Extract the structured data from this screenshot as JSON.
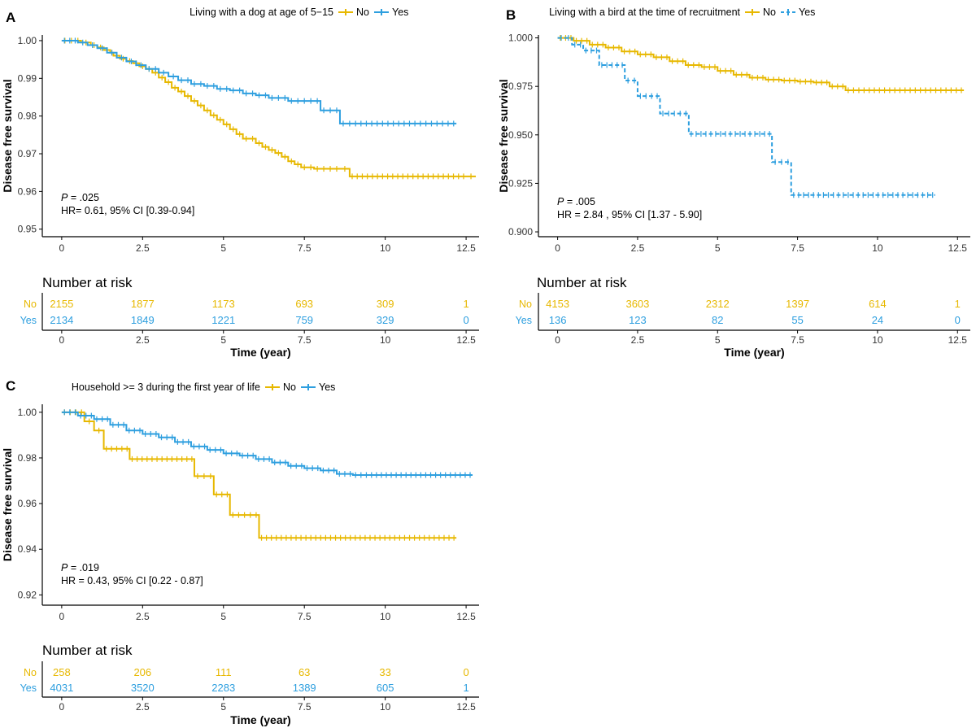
{
  "colors": {
    "no": "#E7B800",
    "yes": "#2E9FDF",
    "axis": "#000000"
  },
  "panels": [
    {
      "label": "A",
      "legend_title": "Living with a dog at age of 5−15",
      "legend_items": [
        "No",
        "Yes"
      ],
      "yes_dashed": false,
      "stats": {
        "p_label": "P",
        "p_value": " =  .025",
        "hr": "HR= 0.61, 95% CI [0.39-0.94]"
      },
      "risk_table": {
        "title": "Number at risk",
        "xlabel": "Time (year)",
        "rows": [
          {
            "name": "No",
            "values": [
              "2155",
              "1877",
              "1173",
              "693",
              "309",
              "1"
            ]
          },
          {
            "name": "Yes",
            "values": [
              "2134",
              "1849",
              "1221",
              "759",
              "329",
              "0"
            ]
          }
        ]
      }
    },
    {
      "label": "B",
      "legend_title": "Living with a bird at the time of recruitment",
      "legend_items": [
        "No",
        "Yes"
      ],
      "yes_dashed": true,
      "stats": {
        "p_label": "P",
        "p_value": " =  .005",
        "hr": "HR = 2.84 , 95% CI [1.37 - 5.90]"
      },
      "risk_table": {
        "title": "Number at risk",
        "xlabel": "Time (year)",
        "rows": [
          {
            "name": "No",
            "values": [
              "4153",
              "3603",
              "2312",
              "1397",
              "614",
              "1"
            ]
          },
          {
            "name": "Yes",
            "values": [
              "136",
              "123",
              "82",
              "55",
              "24",
              "0"
            ]
          }
        ]
      }
    },
    {
      "label": "C",
      "legend_title": "Household >= 3 during the first year of life",
      "legend_items": [
        "No",
        "Yes"
      ],
      "yes_dashed": false,
      "stats": {
        "p_label": "P",
        "p_value": " =  .019",
        "hr": "HR = 0.43, 95% CI [0.22 - 0.87]"
      },
      "risk_table": {
        "title": "Number at risk",
        "xlabel": "Time (year)",
        "rows": [
          {
            "name": "No",
            "values": [
              "258",
              "206",
              "111",
              "63",
              "33",
              "0"
            ]
          },
          {
            "name": "Yes",
            "values": [
              "4031",
              "3520",
              "2283",
              "1389",
              "605",
              "1"
            ]
          }
        ]
      }
    }
  ],
  "chart_data": [
    {
      "type": "line",
      "title": "Living with a dog at age of 5−15",
      "xlabel": "",
      "ylabel": "Disease free survival",
      "xlim": [
        -0.6,
        12.9
      ],
      "ylim": [
        0.948,
        1.0015
      ],
      "x_ticks": [
        0,
        2.5,
        5,
        7.5,
        10,
        12.5
      ],
      "x_tick_labels": [
        "0",
        "2.5",
        "5",
        "7.5",
        "10",
        "12.5"
      ],
      "y_ticks": [
        0.95,
        0.96,
        0.97,
        0.98,
        0.99,
        1.0
      ],
      "y_tick_labels": [
        "0.95",
        "0.96",
        "0.97",
        "0.98",
        "0.99",
        "1.00"
      ],
      "legend": "top",
      "grid": false,
      "series": [
        {
          "name": "No",
          "color": "#E7B800",
          "x": [
            0,
            0.6,
            0.9,
            1.1,
            1.3,
            1.5,
            1.6,
            1.8,
            2.0,
            2.2,
            2.4,
            2.6,
            2.8,
            3.0,
            3.2,
            3.4,
            3.6,
            3.8,
            4.0,
            4.2,
            4.4,
            4.6,
            4.8,
            5.0,
            5.2,
            5.4,
            5.6,
            6.0,
            6.2,
            6.4,
            6.6,
            6.8,
            7.0,
            7.2,
            7.4,
            7.8,
            8.2,
            8.6,
            8.9,
            12.5,
            12.8
          ],
          "y": [
            1.0,
            0.9995,
            0.9988,
            0.9982,
            0.9975,
            0.9968,
            0.996,
            0.9952,
            0.9946,
            0.994,
            0.9932,
            0.9925,
            0.9915,
            0.9902,
            0.989,
            0.9875,
            0.9865,
            0.9853,
            0.984,
            0.9828,
            0.9815,
            0.9802,
            0.979,
            0.9778,
            0.9765,
            0.9752,
            0.974,
            0.9728,
            0.9718,
            0.971,
            0.9702,
            0.9692,
            0.968,
            0.9672,
            0.9664,
            0.966,
            0.966,
            0.966,
            0.964,
            0.964,
            0.964
          ]
        },
        {
          "name": "Yes",
          "color": "#2E9FDF",
          "x": [
            0,
            0.5,
            0.8,
            1.1,
            1.4,
            1.7,
            2.0,
            2.3,
            2.6,
            3.0,
            3.3,
            3.6,
            4.0,
            4.4,
            4.8,
            5.2,
            5.6,
            6.0,
            6.4,
            7.0,
            7.4,
            7.8,
            8.0,
            8.4,
            8.6,
            9.0,
            10.0,
            11.0,
            12.2
          ],
          "y": [
            1.0,
            0.9995,
            0.9988,
            0.998,
            0.9968,
            0.9955,
            0.9945,
            0.9935,
            0.9925,
            0.9915,
            0.9905,
            0.9895,
            0.9885,
            0.988,
            0.9872,
            0.9868,
            0.986,
            0.9855,
            0.9848,
            0.984,
            0.984,
            0.984,
            0.9815,
            0.9815,
            0.978,
            0.978,
            0.978,
            0.978,
            0.978
          ]
        }
      ]
    },
    {
      "type": "line",
      "title": "Living with a bird at the time of recruitment",
      "xlabel": "",
      "ylabel": "Disease free survival",
      "xlim": [
        -0.6,
        12.9
      ],
      "ylim": [
        0.8975,
        1.0015
      ],
      "x_ticks": [
        0,
        2.5,
        5,
        7.5,
        10,
        12.5
      ],
      "x_tick_labels": [
        "0",
        "2.5",
        "5",
        "7.5",
        "10",
        "12.5"
      ],
      "y_ticks": [
        0.9,
        0.925,
        0.95,
        0.975,
        1.0
      ],
      "y_tick_labels": [
        "0.900",
        "0.925",
        "0.950",
        "0.975",
        "1.000"
      ],
      "legend": "top",
      "grid": false,
      "series": [
        {
          "name": "No",
          "color": "#E7B800",
          "x": [
            0,
            0.5,
            1.0,
            1.5,
            2.0,
            2.5,
            3.0,
            3.5,
            4.0,
            4.5,
            5.0,
            5.5,
            6.0,
            6.5,
            7.0,
            7.5,
            8.0,
            8.5,
            9.0,
            9.5,
            12.7
          ],
          "y": [
            1.0,
            0.9985,
            0.9965,
            0.995,
            0.993,
            0.9915,
            0.99,
            0.988,
            0.986,
            0.985,
            0.983,
            0.981,
            0.9795,
            0.9785,
            0.978,
            0.9775,
            0.977,
            0.975,
            0.973,
            0.973,
            0.973
          ]
        },
        {
          "name": "Yes",
          "color": "#2E9FDF",
          "dashed": true,
          "x": [
            0,
            0.45,
            0.8,
            1.3,
            2.1,
            2.5,
            3.2,
            4.1,
            6.7,
            7.3,
            11.8
          ],
          "y": [
            1.0,
            0.9965,
            0.9935,
            0.986,
            0.978,
            0.97,
            0.961,
            0.9505,
            0.936,
            0.919,
            0.919
          ]
        }
      ]
    },
    {
      "type": "line",
      "title": "Household >= 3 during the first year of life",
      "xlabel": "",
      "ylabel": "Disease free survival",
      "xlim": [
        -0.6,
        12.9
      ],
      "ylim": [
        0.9155,
        1.0035
      ],
      "x_ticks": [
        0,
        2.5,
        5,
        7.5,
        10,
        12.5
      ],
      "x_tick_labels": [
        "0",
        "2.5",
        "5",
        "7.5",
        "10",
        "12.5"
      ],
      "y_ticks": [
        0.92,
        0.94,
        0.96,
        0.98,
        1.0
      ],
      "y_tick_labels": [
        "0.92",
        "0.94",
        "0.96",
        "0.98",
        "1.00"
      ],
      "legend": "top",
      "grid": false,
      "series": [
        {
          "name": "No",
          "color": "#E7B800",
          "x": [
            0,
            0.7,
            1.0,
            1.3,
            2.1,
            4.1,
            4.7,
            5.2,
            6.1,
            12.2
          ],
          "y": [
            1.0,
            0.996,
            0.992,
            0.984,
            0.9795,
            0.972,
            0.964,
            0.955,
            0.945,
            0.945
          ]
        },
        {
          "name": "Yes",
          "color": "#2E9FDF",
          "x": [
            0,
            0.5,
            1.0,
            1.5,
            2.0,
            2.5,
            3.0,
            3.5,
            4.0,
            4.5,
            5.0,
            5.5,
            6.0,
            6.5,
            7.0,
            7.5,
            8.0,
            8.5,
            9.0,
            9.5,
            12.7
          ],
          "y": [
            1.0,
            0.9985,
            0.997,
            0.9945,
            0.992,
            0.9905,
            0.989,
            0.987,
            0.985,
            0.9835,
            0.982,
            0.981,
            0.9795,
            0.978,
            0.9765,
            0.9755,
            0.9745,
            0.973,
            0.9725,
            0.9725,
            0.9725
          ]
        }
      ]
    }
  ]
}
